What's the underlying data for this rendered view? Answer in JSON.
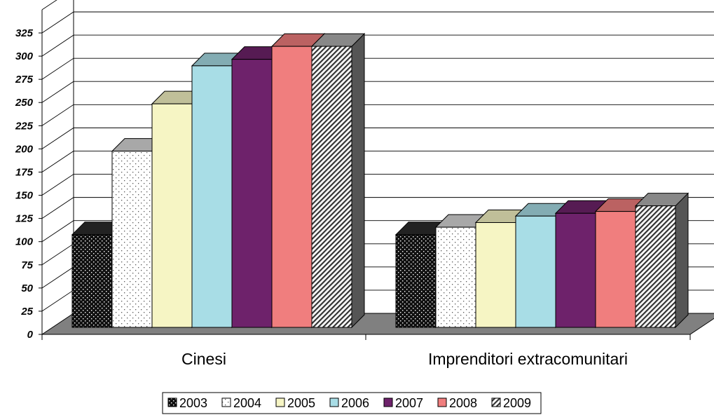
{
  "chart_data": {
    "type": "bar",
    "three_d": true,
    "title": "",
    "xlabel": "",
    "ylabel": "",
    "categories": [
      "Cinesi",
      "Imprenditori extracomunitari"
    ],
    "ylim": [
      0,
      325
    ],
    "ytick_step": 25,
    "grid": true,
    "legend_position": "bottom",
    "series": [
      {
        "name": "2003",
        "values": [
          100,
          100
        ],
        "color": "#111111",
        "pattern": "dots-white-on-black"
      },
      {
        "name": "2004",
        "values": [
          190,
          108
        ],
        "color": "#ffffff",
        "pattern": "dots-black-on-white"
      },
      {
        "name": "2005",
        "values": [
          241,
          113
        ],
        "color": "#f6f5c4",
        "pattern": "solid"
      },
      {
        "name": "2006",
        "values": [
          282,
          120
        ],
        "color": "#a8dde6",
        "pattern": "solid"
      },
      {
        "name": "2007",
        "values": [
          289,
          123
        ],
        "color": "#6e226b",
        "pattern": "solid"
      },
      {
        "name": "2008",
        "values": [
          303,
          125
        ],
        "color": "#f07e7e",
        "pattern": "solid"
      },
      {
        "name": "2009",
        "values": [
          303,
          131
        ],
        "color": "#ffffff",
        "pattern": "diagonal-hatch"
      }
    ],
    "wall_color": "#ffffff",
    "floor_color": "#808080"
  }
}
